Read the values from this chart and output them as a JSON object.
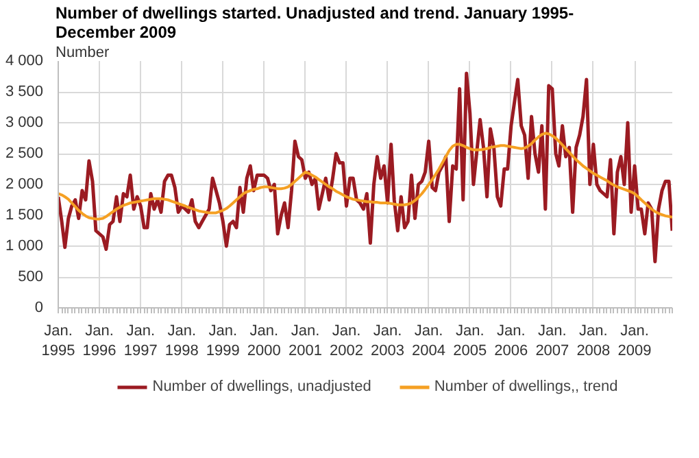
{
  "chart_data": {
    "type": "line",
    "title": "Number of dwellings started. Unadjusted and trend. January 1995-December 2009",
    "ylabel": "Number",
    "x": [
      "1995-01",
      "1995-02",
      "1995-03",
      "1995-04",
      "1995-05",
      "1995-06",
      "1995-07",
      "1995-08",
      "1995-09",
      "1995-10",
      "1995-11",
      "1995-12",
      "1996-01",
      "1996-02",
      "1996-03",
      "1996-04",
      "1996-05",
      "1996-06",
      "1996-07",
      "1996-08",
      "1996-09",
      "1996-10",
      "1996-11",
      "1996-12",
      "1997-01",
      "1997-02",
      "1997-03",
      "1997-04",
      "1997-05",
      "1997-06",
      "1997-07",
      "1997-08",
      "1997-09",
      "1997-10",
      "1997-11",
      "1997-12",
      "1998-01",
      "1998-02",
      "1998-03",
      "1998-04",
      "1998-05",
      "1998-06",
      "1998-07",
      "1998-08",
      "1998-09",
      "1998-10",
      "1998-11",
      "1998-12",
      "1999-01",
      "1999-02",
      "1999-03",
      "1999-04",
      "1999-05",
      "1999-06",
      "1999-07",
      "1999-08",
      "1999-09",
      "1999-10",
      "1999-11",
      "1999-12",
      "2000-01",
      "2000-02",
      "2000-03",
      "2000-04",
      "2000-05",
      "2000-06",
      "2000-07",
      "2000-08",
      "2000-09",
      "2000-10",
      "2000-11",
      "2000-12",
      "2001-01",
      "2001-02",
      "2001-03",
      "2001-04",
      "2001-05",
      "2001-06",
      "2001-07",
      "2001-08",
      "2001-09",
      "2001-10",
      "2001-11",
      "2001-12",
      "2002-01",
      "2002-02",
      "2002-03",
      "2002-04",
      "2002-05",
      "2002-06",
      "2002-07",
      "2002-08",
      "2002-09",
      "2002-10",
      "2002-11",
      "2002-12",
      "2003-01",
      "2003-02",
      "2003-03",
      "2003-04",
      "2003-05",
      "2003-06",
      "2003-07",
      "2003-08",
      "2003-09",
      "2003-10",
      "2003-11",
      "2003-12",
      "2004-01",
      "2004-02",
      "2004-03",
      "2004-04",
      "2004-05",
      "2004-06",
      "2004-07",
      "2004-08",
      "2004-09",
      "2004-10",
      "2004-11",
      "2004-12",
      "2005-01",
      "2005-02",
      "2005-03",
      "2005-04",
      "2005-05",
      "2005-06",
      "2005-07",
      "2005-08",
      "2005-09",
      "2005-10",
      "2005-11",
      "2005-12",
      "2006-01",
      "2006-02",
      "2006-03",
      "2006-04",
      "2006-05",
      "2006-06",
      "2006-07",
      "2006-08",
      "2006-09",
      "2006-10",
      "2006-11",
      "2006-12",
      "2007-01",
      "2007-02",
      "2007-03",
      "2007-04",
      "2007-05",
      "2007-06",
      "2007-07",
      "2007-08",
      "2007-09",
      "2007-10",
      "2007-11",
      "2007-12",
      "2008-01",
      "2008-02",
      "2008-03",
      "2008-04",
      "2008-05",
      "2008-06",
      "2008-07",
      "2008-08",
      "2008-09",
      "2008-10",
      "2008-11",
      "2008-12",
      "2009-01",
      "2009-02",
      "2009-03",
      "2009-04",
      "2009-05",
      "2009-06",
      "2009-07",
      "2009-08",
      "2009-09",
      "2009-10",
      "2009-11",
      "2009-12"
    ],
    "series": [
      {
        "name": "Number of dwellings, unadjusted",
        "color": "#9b1b22",
        "values": [
          1800,
          1400,
          980,
          1450,
          1650,
          1750,
          1450,
          1900,
          1750,
          2380,
          2050,
          1250,
          1200,
          1150,
          950,
          1350,
          1400,
          1800,
          1400,
          1850,
          1800,
          2150,
          1600,
          1800,
          1650,
          1300,
          1300,
          1850,
          1600,
          1750,
          1550,
          2050,
          2150,
          2150,
          1950,
          1550,
          1650,
          1600,
          1550,
          1750,
          1400,
          1300,
          1400,
          1500,
          1600,
          2100,
          1900,
          1700,
          1400,
          1000,
          1350,
          1400,
          1300,
          1950,
          1550,
          2100,
          2300,
          1900,
          2150,
          2150,
          2150,
          2100,
          1900,
          2000,
          1200,
          1500,
          1700,
          1300,
          1900,
          2700,
          2450,
          2400,
          2100,
          2200,
          2000,
          2100,
          1600,
          1850,
          2100,
          1750,
          2100,
          2500,
          2350,
          2350,
          1650,
          2100,
          2100,
          1750,
          1700,
          1600,
          1850,
          1050,
          2000,
          2450,
          2100,
          2300,
          1700,
          2650,
          1750,
          1250,
          1800,
          1300,
          1400,
          2150,
          1450,
          2000,
          2050,
          2200,
          2700,
          1950,
          1900,
          2200,
          2300,
          2450,
          1400,
          2300,
          2250,
          3550,
          1750,
          3800,
          3150,
          2000,
          2500,
          3050,
          2600,
          1800,
          2900,
          2600,
          1800,
          1650,
          2250,
          2250,
          2950,
          3350,
          3700,
          2950,
          2800,
          2100,
          3100,
          2500,
          2200,
          2950,
          1600,
          3600,
          3550,
          2500,
          2300,
          2950,
          2450,
          2600,
          1550,
          2600,
          2800,
          3100,
          3700,
          2000,
          2650,
          2000,
          1900,
          1850,
          1800,
          2400,
          1200,
          2200,
          2450,
          2000,
          3000,
          1550,
          2300,
          1600,
          1600,
          1200,
          1700,
          1600,
          750,
          1600,
          1900,
          2050,
          2050,
          1250
        ]
      },
      {
        "name": "Number of dwellings,, trend",
        "color": "#f5a023",
        "values": [
          1850,
          1830,
          1800,
          1760,
          1700,
          1640,
          1580,
          1530,
          1490,
          1460,
          1450,
          1440,
          1440,
          1450,
          1480,
          1520,
          1560,
          1600,
          1630,
          1660,
          1680,
          1700,
          1710,
          1720,
          1730,
          1740,
          1750,
          1760,
          1770,
          1770,
          1770,
          1760,
          1750,
          1730,
          1710,
          1690,
          1670,
          1650,
          1630,
          1610,
          1590,
          1570,
          1560,
          1550,
          1540,
          1540,
          1540,
          1560,
          1580,
          1610,
          1650,
          1700,
          1750,
          1800,
          1850,
          1880,
          1900,
          1920,
          1930,
          1950,
          1960,
          1960,
          1950,
          1940,
          1930,
          1930,
          1940,
          1960,
          2000,
          2050,
          2100,
          2150,
          2200,
          2180,
          2150,
          2120,
          2080,
          2040,
          2000,
          1960,
          1930,
          1890,
          1860,
          1830,
          1800,
          1780,
          1760,
          1750,
          1740,
          1730,
          1720,
          1720,
          1710,
          1710,
          1700,
          1700,
          1700,
          1690,
          1680,
          1670,
          1670,
          1670,
          1680,
          1700,
          1740,
          1790,
          1850,
          1920,
          2000,
          2080,
          2160,
          2250,
          2350,
          2450,
          2550,
          2620,
          2650,
          2650,
          2630,
          2600,
          2580,
          2560,
          2560,
          2560,
          2570,
          2580,
          2600,
          2610,
          2620,
          2630,
          2630,
          2620,
          2610,
          2600,
          2590,
          2580,
          2590,
          2620,
          2660,
          2720,
          2770,
          2810,
          2830,
          2820,
          2790,
          2750,
          2700,
          2640,
          2580,
          2520,
          2460,
          2400,
          2350,
          2300,
          2260,
          2220,
          2180,
          2150,
          2120,
          2090,
          2060,
          2020,
          1990,
          1960,
          1940,
          1920,
          1900,
          1880,
          1850,
          1800,
          1750,
          1700,
          1650,
          1600,
          1560,
          1530,
          1510,
          1490,
          1480,
          1470
        ]
      }
    ],
    "xlim": [
      "1995-01",
      "2009-12"
    ],
    "xticks": [
      {
        "value": "1995-01",
        "label": "Jan.\n1995"
      },
      {
        "value": "1996-01",
        "label": "Jan.\n1996"
      },
      {
        "value": "1997-01",
        "label": "Jan.\n1997"
      },
      {
        "value": "1998-01",
        "label": "Jan.\n1998"
      },
      {
        "value": "1999-01",
        "label": "Jan.\n1999"
      },
      {
        "value": "2000-01",
        "label": "Jan.\n2000"
      },
      {
        "value": "2001-01",
        "label": "Jan.\n2001"
      },
      {
        "value": "2002-01",
        "label": "Jan.\n2002"
      },
      {
        "value": "2003-01",
        "label": "Jan.\n2003"
      },
      {
        "value": "2004-01",
        "label": "Jan.\n2004"
      },
      {
        "value": "2005-01",
        "label": "Jan.\n2005"
      },
      {
        "value": "2006-01",
        "label": "Jan.\n2006"
      },
      {
        "value": "2007-01",
        "label": "Jan.\n2007"
      },
      {
        "value": "2008-01",
        "label": "Jan.\n2008"
      },
      {
        "value": "2009-01",
        "label": "Jan.\n2009"
      }
    ],
    "ylim": [
      0,
      4000
    ],
    "yticks": [
      {
        "value": 0,
        "label": "0"
      },
      {
        "value": 500,
        "label": "500"
      },
      {
        "value": 1000,
        "label": "1 000"
      },
      {
        "value": 1500,
        "label": "1 500"
      },
      {
        "value": 2000,
        "label": "2 000"
      },
      {
        "value": 2500,
        "label": "2 500"
      },
      {
        "value": 3000,
        "label": "3 000"
      },
      {
        "value": 3500,
        "label": "3 500"
      },
      {
        "value": 4000,
        "label": "4 000"
      }
    ],
    "grid": true,
    "legend": "bottom",
    "marker": "none",
    "line_style": "solid"
  }
}
